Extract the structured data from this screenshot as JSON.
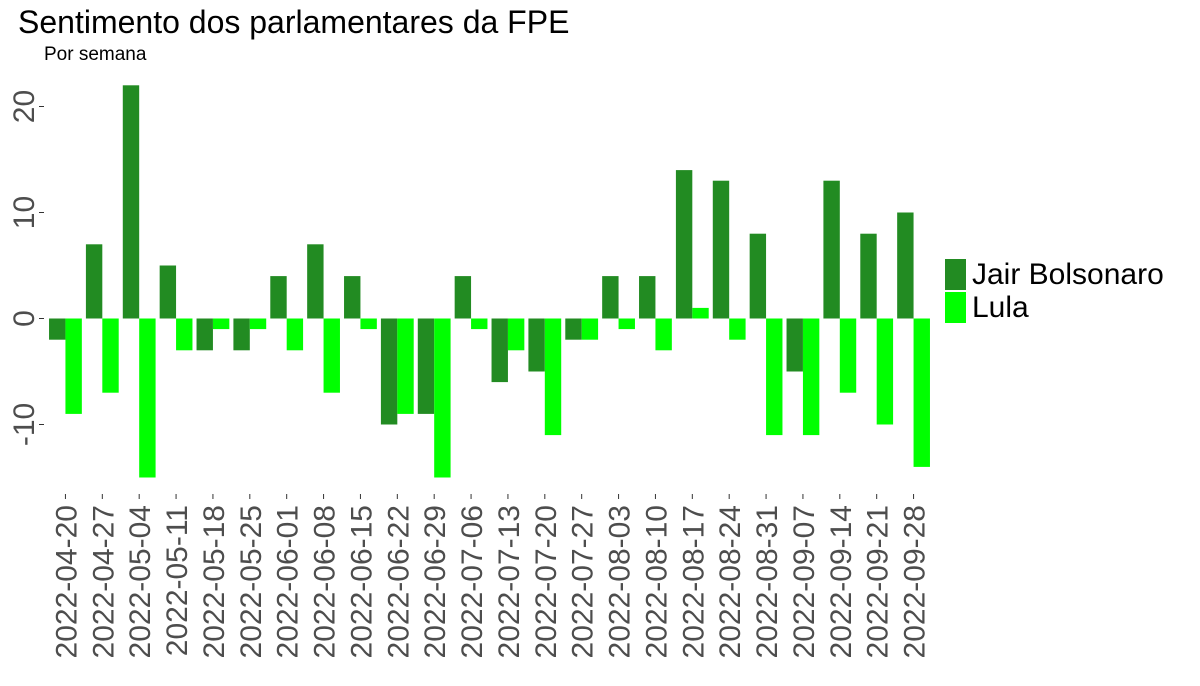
{
  "chart_data": {
    "type": "bar",
    "title": "Sentimento dos parlamentares da FPE",
    "subtitle": "Por semana",
    "xlabel": "",
    "ylabel": "",
    "ylim": [
      -15,
      22
    ],
    "yticks": [
      {
        "value": -10,
        "label": "-10"
      },
      {
        "value": 0,
        "label": "0"
      },
      {
        "value": 10,
        "label": "10"
      },
      {
        "value": 20,
        "label": "20"
      }
    ],
    "grid": false,
    "legend_position": "right",
    "categories": [
      "2022-04-20",
      "2022-04-27",
      "2022-05-04",
      "2022-05-11",
      "2022-05-18",
      "2022-05-25",
      "2022-06-01",
      "2022-06-08",
      "2022-06-15",
      "2022-06-22",
      "2022-06-29",
      "2022-07-06",
      "2022-07-13",
      "2022-07-20",
      "2022-07-27",
      "2022-08-03",
      "2022-08-10",
      "2022-08-17",
      "2022-08-24",
      "2022-08-31",
      "2022-09-07",
      "2022-09-14",
      "2022-09-21",
      "2022-09-28"
    ],
    "series": [
      {
        "name": "Jair Bolsonaro",
        "color": "#228B22",
        "values": [
          -2,
          7,
          22,
          5,
          -3,
          -3,
          4,
          7,
          4,
          -10,
          -9,
          4,
          -6,
          -5,
          -2,
          4,
          4,
          14,
          13,
          8,
          -5,
          13,
          8,
          10
        ]
      },
      {
        "name": "Lula",
        "color": "#00FF00",
        "values": [
          -9,
          -7,
          -15,
          -3,
          -1,
          -1,
          -3,
          -7,
          -1,
          -9,
          -15,
          -1,
          -3,
          -11,
          -2,
          -1,
          -3,
          1,
          -2,
          -11,
          -11,
          -7,
          -10,
          -14
        ]
      }
    ]
  }
}
